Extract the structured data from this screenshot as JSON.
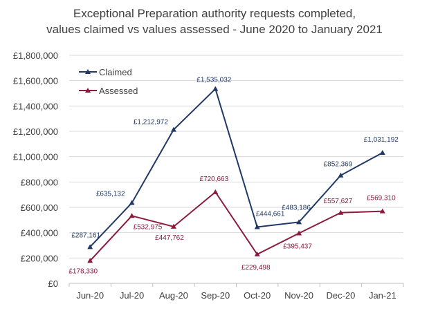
{
  "chart_data": {
    "type": "line",
    "title_line1": "Exceptional Preparation authority requests completed,",
    "title_line2": "values claimed vs values assessed - June 2020 to January 2021",
    "categories": [
      "Jun-20",
      "Jul-20",
      "Aug-20",
      "Sep-20",
      "Oct-20",
      "Nov-20",
      "Dec-20",
      "Jan-21"
    ],
    "y_ticks": [
      "£0",
      "£200,000",
      "£400,000",
      "£600,000",
      "£800,000",
      "£1,000,000",
      "£1,200,000",
      "£1,400,000",
      "£1,600,000",
      "£1,800,000"
    ],
    "ylim": [
      0,
      1800000
    ],
    "grid": true,
    "legend_position": "top-left",
    "series": [
      {
        "name": "Claimed",
        "color": "#1f3864",
        "values": [
          287161,
          635132,
          1212972,
          1535032,
          444661,
          483186,
          852369,
          1031192
        ],
        "labels": [
          "£287,161",
          "£635,132",
          "£1,212,972",
          "£1,535,032",
          "£444,661",
          "£483,186",
          "£852,369",
          "£1,031,192"
        ]
      },
      {
        "name": "Assessed",
        "color": "#8b1a3c",
        "values": [
          178330,
          532975,
          447762,
          720663,
          229498,
          395437,
          557627,
          569310
        ],
        "labels": [
          "£178,330",
          "£532,975",
          "£447,762",
          "£720,663",
          "£229,498",
          "£395,437",
          "£557,627",
          "£569,310"
        ]
      }
    ]
  }
}
